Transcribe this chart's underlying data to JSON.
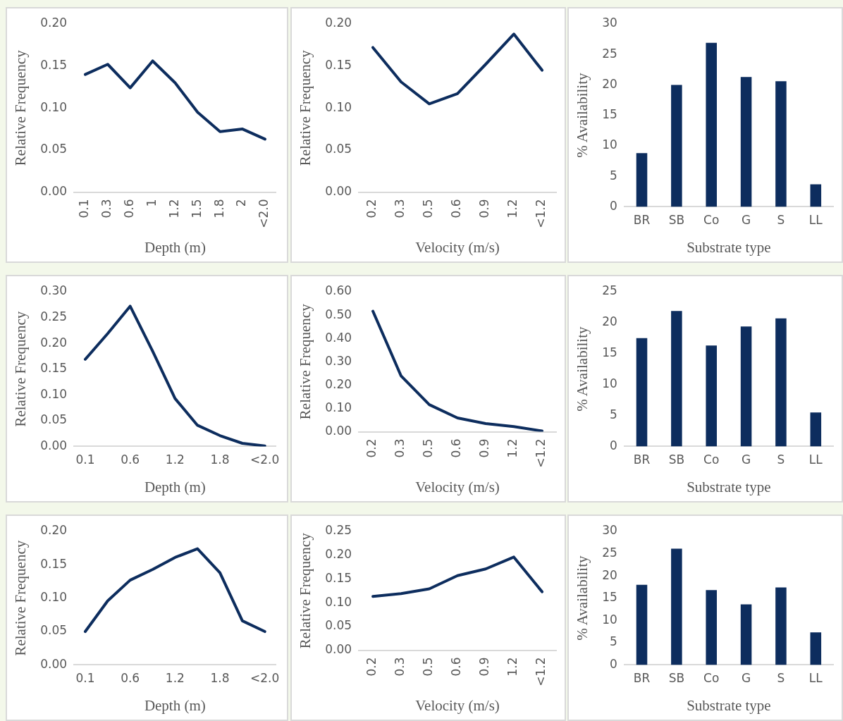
{
  "chart_data": [
    {
      "type": "line",
      "xlabel": "Depth (m)",
      "ylabel": "Relative Frequency",
      "categories": [
        "0.1",
        "0.3",
        "0.6",
        "1",
        "1.2",
        "1.5",
        "1.8",
        "2",
        "<2.0"
      ],
      "color": "#0d2d5e",
      "values": [
        0.14,
        0.152,
        0.124,
        0.156,
        0.13,
        0.095,
        0.072,
        0.075,
        0.063
      ],
      "ylim": [
        0,
        0.2
      ],
      "yticks": [
        {
          "value": 0,
          "label": "0.00"
        },
        {
          "value": 0.05,
          "label": "0.05"
        },
        {
          "value": 0.1,
          "label": "0.10"
        },
        {
          "value": 0.15,
          "label": "0.15"
        },
        {
          "value": 0.2,
          "label": "0.20"
        }
      ]
    },
    {
      "type": "line",
      "xlabel": "Velocity (m/s)",
      "ylabel": "Relative Frequency",
      "categories": [
        "0.2",
        "0.3",
        "0.5",
        "0.6",
        "0.9",
        "1.2",
        "<1.2"
      ],
      "color": "#0d2d5e",
      "values": [
        0.172,
        0.131,
        0.105,
        0.117,
        0.152,
        0.188,
        0.145
      ],
      "ylim": [
        0,
        0.2
      ],
      "yticks": [
        {
          "value": 0,
          "label": "0.00"
        },
        {
          "value": 0.05,
          "label": "0.05"
        },
        {
          "value": 0.1,
          "label": "0.10"
        },
        {
          "value": 0.15,
          "label": "0.15"
        },
        {
          "value": 0.2,
          "label": "0.20"
        }
      ]
    },
    {
      "type": "bar",
      "xlabel": "Substrate type",
      "ylabel": "% Availability",
      "categories": [
        "BR",
        "SB",
        "Co",
        "G",
        "S",
        "LL"
      ],
      "color": "#0d2d5e",
      "values": [
        8.8,
        20.0,
        26.9,
        21.3,
        20.6,
        3.7
      ],
      "ylim": [
        0,
        30
      ],
      "yticks": [
        0,
        5,
        10,
        15,
        20,
        25,
        30
      ]
    },
    {
      "type": "line",
      "xlabel": "Depth (m)",
      "ylabel": "Relative Frequency",
      "categories": [
        "0.1",
        null,
        "0.6",
        null,
        "1.2",
        null,
        "1.8",
        null,
        "<2.0"
      ],
      "color": "#0d2d5e",
      "values": [
        0.169,
        0.219,
        0.272,
        0.185,
        0.093,
        0.041,
        0.021,
        0.006,
        0.001
      ],
      "ylim": [
        0,
        0.3
      ],
      "yticks": [
        {
          "value": 0,
          "label": "0.00"
        },
        {
          "value": 0.05,
          "label": "0.05"
        },
        {
          "value": 0.1,
          "label": "0.10"
        },
        {
          "value": 0.15,
          "label": "0.15"
        },
        {
          "value": 0.2,
          "label": "0.20"
        },
        {
          "value": 0.25,
          "label": "0.25"
        },
        {
          "value": 0.3,
          "label": "0.30"
        }
      ]
    },
    {
      "type": "line",
      "xlabel": "Velocity (m/s)",
      "ylabel": "Relative Frequency",
      "categories": [
        "0.2",
        "0.3",
        "0.5",
        "0.6",
        "0.9",
        "1.2",
        "<1.2"
      ],
      "color": "#0d2d5e",
      "values": [
        0.517,
        0.239,
        0.116,
        0.059,
        0.035,
        0.022,
        0.003
      ],
      "ylim": [
        0,
        0.6
      ],
      "yticks": [
        {
          "value": 0,
          "label": "0.00"
        },
        {
          "value": 0.1,
          "label": "0.10"
        },
        {
          "value": 0.2,
          "label": "0.20"
        },
        {
          "value": 0.3,
          "label": "0.30"
        },
        {
          "value": 0.4,
          "label": "0.40"
        },
        {
          "value": 0.5,
          "label": "0.50"
        },
        {
          "value": 0.6,
          "label": "0.60"
        }
      ]
    },
    {
      "type": "bar",
      "xlabel": "Substrate type",
      "ylabel": "% Availability",
      "categories": [
        "BR",
        "SB",
        "Co",
        "G",
        "S",
        "LL"
      ],
      "color": "#0d2d5e",
      "values": [
        17.5,
        21.9,
        16.3,
        19.4,
        20.7,
        5.5
      ],
      "ylim": [
        0,
        25
      ],
      "yticks": [
        0,
        5,
        10,
        15,
        20,
        25
      ]
    },
    {
      "type": "line",
      "xlabel": "Depth (m)",
      "ylabel": "Relative Frequency",
      "categories": [
        "0.1",
        null,
        "0.6",
        null,
        "1.2",
        null,
        "1.8",
        null,
        "<2.0"
      ],
      "color": "#0d2d5e",
      "values": [
        0.05,
        0.096,
        0.127,
        0.143,
        0.161,
        0.174,
        0.138,
        0.066,
        0.05
      ],
      "ylim": [
        0,
        0.2
      ],
      "yticks": [
        {
          "value": 0,
          "label": "0.00"
        },
        {
          "value": 0.05,
          "label": "0.05"
        },
        {
          "value": 0.1,
          "label": "0.10"
        },
        {
          "value": 0.15,
          "label": "0.15"
        },
        {
          "value": 0.2,
          "label": "0.20"
        }
      ]
    },
    {
      "type": "line",
      "xlabel": "Velocity (m/s)",
      "ylabel": "Relative Frequency",
      "categories": [
        "0.2",
        "0.3",
        "0.5",
        "0.6",
        "0.9",
        "1.2",
        "<1.2"
      ],
      "color": "#0d2d5e",
      "values": [
        0.113,
        0.119,
        0.129,
        0.157,
        0.171,
        0.196,
        0.123
      ],
      "ylim": [
        0,
        0.25
      ],
      "yticks": [
        {
          "value": 0,
          "label": "0.00"
        },
        {
          "value": 0.05,
          "label": "0.05"
        },
        {
          "value": 0.1,
          "label": "0.10"
        },
        {
          "value": 0.15,
          "label": "0.15"
        },
        {
          "value": 0.2,
          "label": "0.20"
        },
        {
          "value": 0.25,
          "label": "0.25"
        }
      ]
    },
    {
      "type": "bar",
      "xlabel": "Substrate type",
      "ylabel": "% Availability",
      "categories": [
        "BR",
        "SB",
        "Co",
        "G",
        "S",
        "LL"
      ],
      "color": "#0d2d5e",
      "values": [
        18.0,
        26.1,
        16.8,
        13.6,
        17.4,
        7.3
      ],
      "ylim": [
        0,
        30
      ],
      "yticks": [
        0,
        5,
        10,
        15,
        20,
        25,
        30
      ]
    }
  ]
}
